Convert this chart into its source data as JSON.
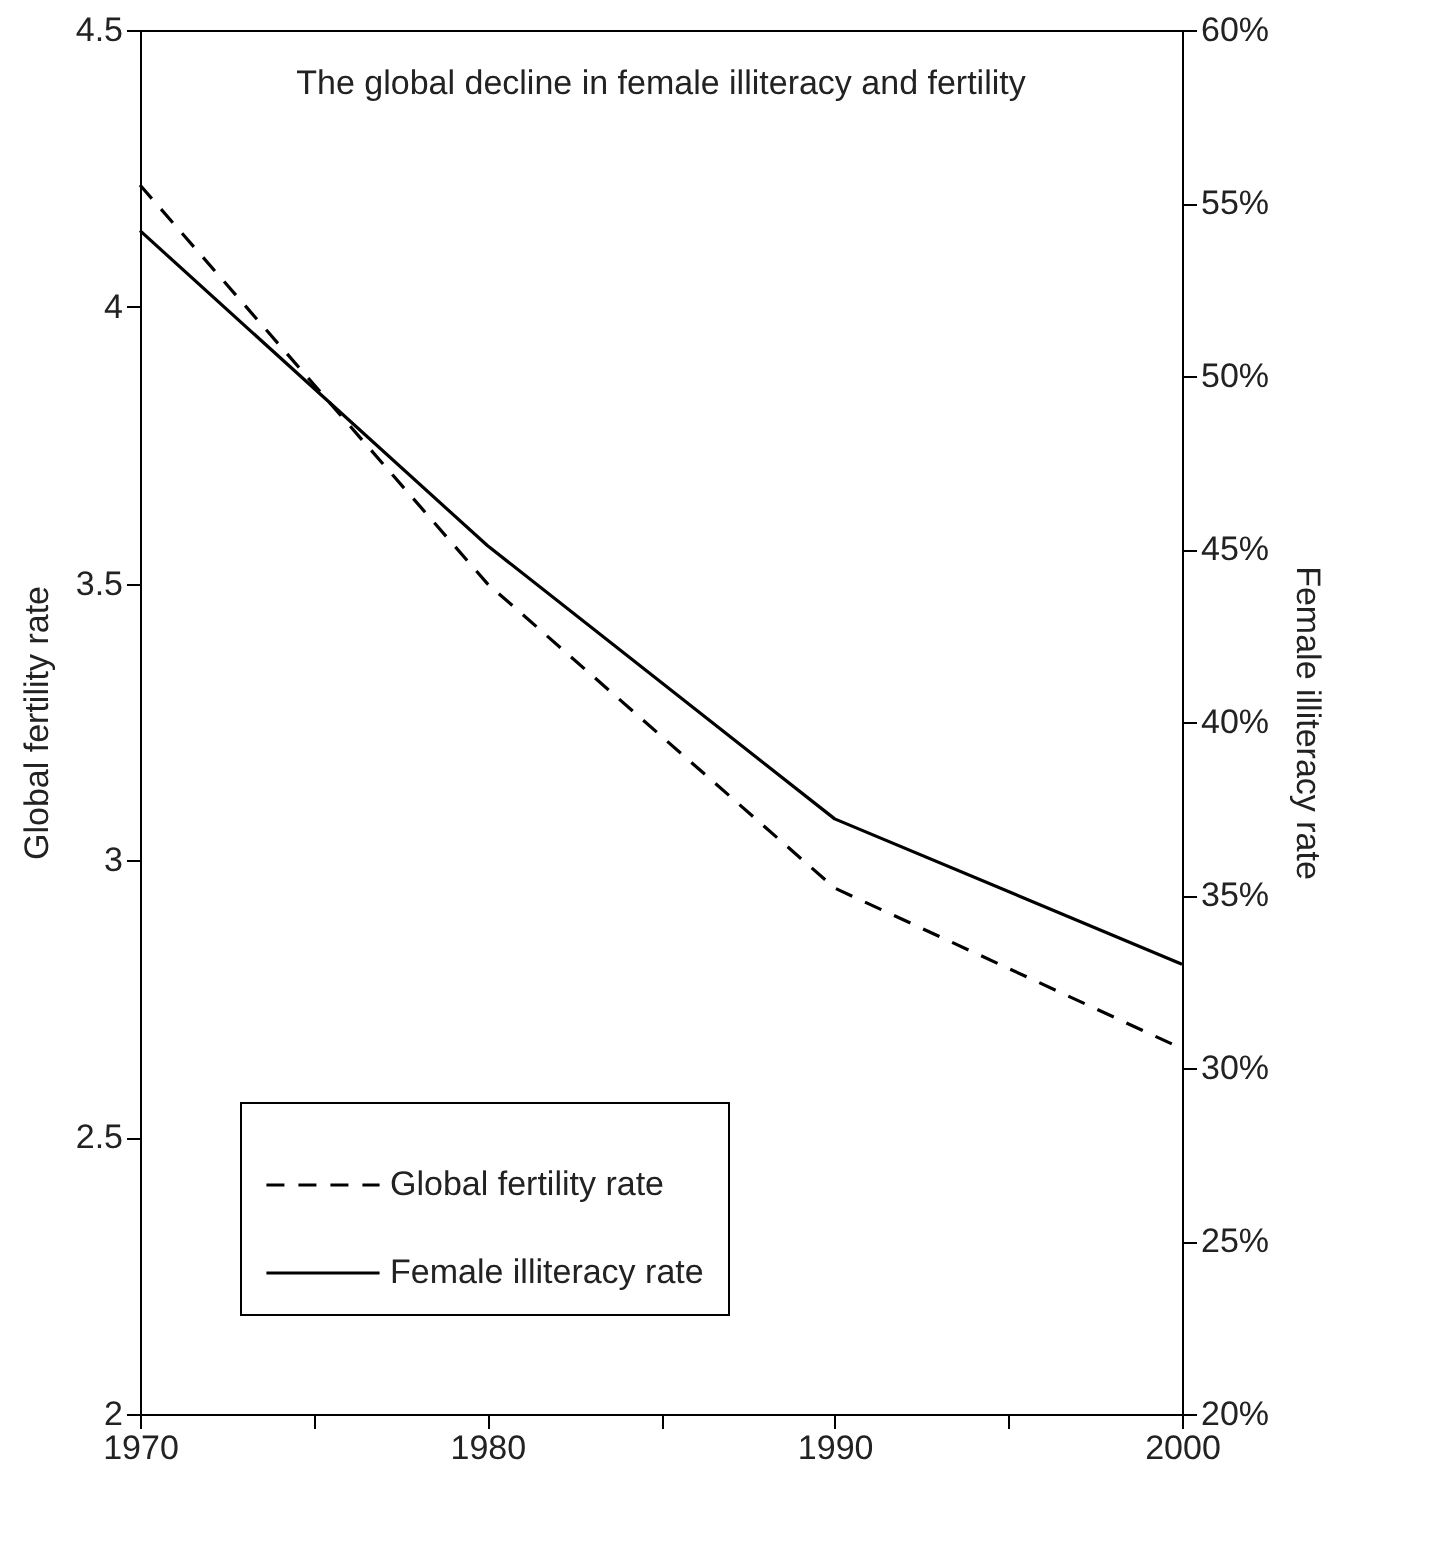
{
  "chart_data": {
    "type": "line",
    "title": "The global decline in female illiteracy and fertility",
    "ylabel": "Global fertility rate",
    "y2label": "Female illiteracy rate",
    "x": [
      1970,
      1980,
      1990,
      2000
    ],
    "series": [
      {
        "name": "Global fertility rate",
        "color": "#000000",
        "line_style": "dashed",
        "values": [
          4.22,
          3.5,
          2.95,
          2.66
        ]
      },
      {
        "name": "Female illiteracy rate",
        "color": "#000000",
        "line_style": "solid",
        "axis": "y2",
        "values": [
          54.2,
          45.1,
          37.2,
          33.0
        ]
      }
    ],
    "xlim": [
      1970,
      2000
    ],
    "xticks": [
      1970,
      {
        "value": 1975,
        "label": null
      },
      1980,
      {
        "value": 1985,
        "label": null
      },
      1990,
      {
        "value": 1995,
        "label": null
      },
      2000
    ],
    "ylim": [
      2,
      4.5
    ],
    "yticks": [
      2,
      2.5,
      3,
      3.5,
      4,
      4.5
    ],
    "y2lim": [
      20,
      60
    ],
    "y2ticks": [
      {
        "value": 20,
        "label": "20%"
      },
      {
        "value": 25,
        "label": "25%"
      },
      {
        "value": 30,
        "label": "30%"
      },
      {
        "value": 35,
        "label": "35%"
      },
      {
        "value": 40,
        "label": "40%"
      },
      {
        "value": 45,
        "label": "45%"
      },
      {
        "value": 50,
        "label": "50%"
      },
      {
        "value": 55,
        "label": "55%"
      },
      {
        "value": 60,
        "label": "60%"
      }
    ],
    "legend": "bottom left",
    "grid": false
  }
}
